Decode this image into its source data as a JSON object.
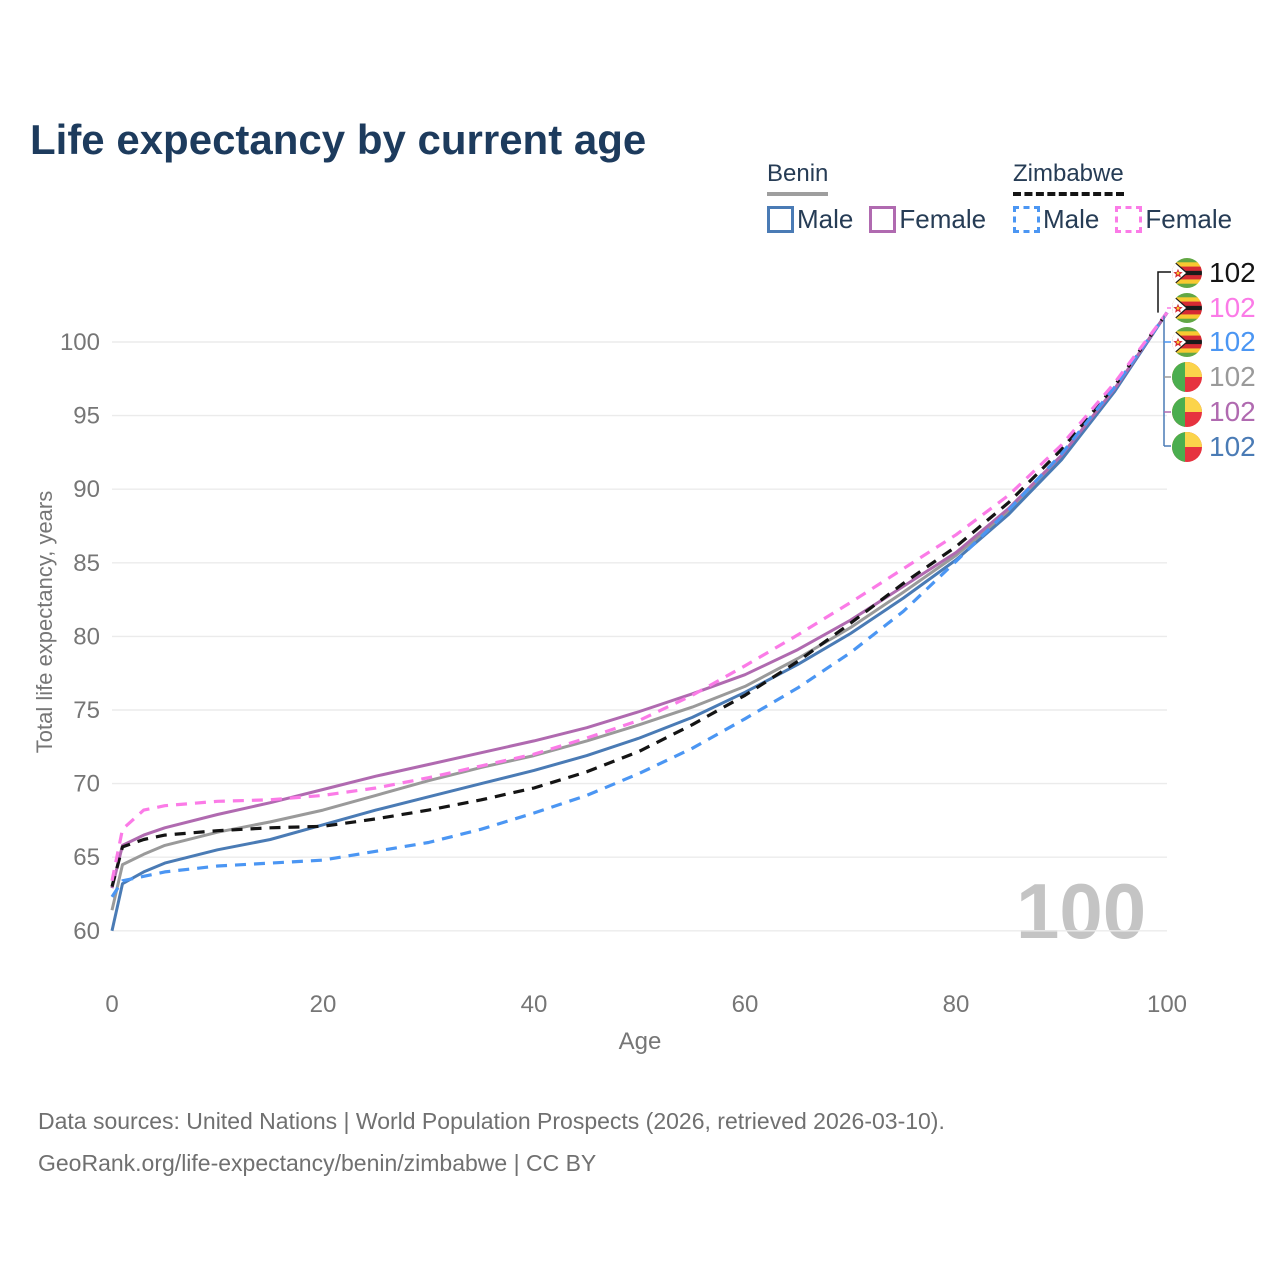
{
  "title": "Life expectancy by current age",
  "legend": {
    "groups": [
      {
        "name": "Benin",
        "underline_color": "#9e9e9e",
        "style": "solid",
        "items": [
          {
            "label": "Male",
            "color": "#4a7bb5"
          },
          {
            "label": "Female",
            "color": "#b06ab0"
          }
        ]
      },
      {
        "name": "Zimbabwe",
        "underline_color": "#141414",
        "style": "dashed",
        "items": [
          {
            "label": "Male",
            "color": "#4b96f3"
          },
          {
            "label": "Female",
            "color": "#fb7be7"
          }
        ]
      }
    ]
  },
  "chart_data": {
    "type": "line",
    "title": "Life expectancy by current age",
    "xlabel": "Age",
    "ylabel": "Total life expectancy, years",
    "xlim": [
      0,
      100
    ],
    "ylim": [
      58,
      106
    ],
    "x_ticks": [
      0,
      20,
      40,
      60,
      80,
      100
    ],
    "y_ticks": [
      60,
      65,
      70,
      75,
      80,
      85,
      90,
      95,
      100
    ],
    "grid": "horizontal",
    "legend_position": "top-right",
    "watermark": "100",
    "x": [
      0,
      1,
      3,
      5,
      10,
      15,
      20,
      25,
      30,
      35,
      40,
      45,
      50,
      55,
      60,
      65,
      70,
      75,
      80,
      85,
      90,
      95,
      100
    ],
    "series": [
      {
        "name": "Benin Total",
        "color": "#9a9a9a",
        "dashed": false,
        "values": [
          61.4,
          64.5,
          65.2,
          65.8,
          66.7,
          67.4,
          68.2,
          69.2,
          70.2,
          71.1,
          71.9,
          72.9,
          74.0,
          75.2,
          76.6,
          78.5,
          80.6,
          83.0,
          85.5,
          88.5,
          92.1,
          96.7,
          102
        ]
      },
      {
        "name": "Benin Male",
        "color": "#4a7bb5",
        "dashed": false,
        "values": [
          60.0,
          63.2,
          64.0,
          64.6,
          65.5,
          66.2,
          67.2,
          68.2,
          69.1,
          70.0,
          70.9,
          71.9,
          73.1,
          74.5,
          76.2,
          78.1,
          80.2,
          82.6,
          85.2,
          88.3,
          92.0,
          96.6,
          102
        ]
      },
      {
        "name": "Benin Female",
        "color": "#b06ab0",
        "dashed": false,
        "values": [
          62.9,
          65.8,
          66.5,
          67.0,
          67.9,
          68.7,
          69.6,
          70.5,
          71.3,
          72.1,
          72.9,
          73.8,
          74.9,
          76.1,
          77.4,
          79.1,
          81.1,
          83.4,
          85.7,
          88.7,
          92.3,
          96.8,
          102
        ]
      },
      {
        "name": "Zimbabwe Total",
        "color": "#141414",
        "dashed": true,
        "values": [
          63.0,
          65.7,
          66.2,
          66.5,
          66.8,
          67.0,
          67.1,
          67.6,
          68.2,
          68.9,
          69.7,
          70.8,
          72.2,
          74.0,
          76.0,
          78.3,
          80.9,
          83.6,
          86.1,
          89.1,
          92.7,
          97.0,
          102
        ]
      },
      {
        "name": "Zimbabwe Male",
        "color": "#4b96f3",
        "dashed": true,
        "values": [
          62.3,
          63.4,
          63.7,
          64.0,
          64.4,
          64.6,
          64.8,
          65.4,
          66.0,
          66.9,
          68.0,
          69.2,
          70.7,
          72.4,
          74.4,
          76.5,
          78.9,
          81.7,
          85.1,
          88.6,
          92.4,
          96.9,
          102
        ]
      },
      {
        "name": "Zimbabwe Female",
        "color": "#fb7be7",
        "dashed": true,
        "values": [
          63.4,
          66.9,
          68.2,
          68.5,
          68.8,
          68.9,
          69.2,
          69.7,
          70.4,
          71.2,
          72.0,
          73.1,
          74.3,
          76.0,
          78.0,
          80.1,
          82.3,
          84.6,
          86.9,
          89.6,
          93.0,
          97.2,
          102
        ]
      }
    ]
  },
  "end_labels": [
    {
      "value": "102",
      "flag": "zimbabwe",
      "color": "#141414"
    },
    {
      "value": "102",
      "flag": "zimbabwe",
      "color": "#fb7be7"
    },
    {
      "value": "102",
      "flag": "zimbabwe",
      "color": "#4b96f3"
    },
    {
      "value": "102",
      "flag": "benin",
      "color": "#9a9a9a"
    },
    {
      "value": "102",
      "flag": "benin",
      "color": "#b06ab0"
    },
    {
      "value": "102",
      "flag": "benin",
      "color": "#4a7bb5"
    }
  ],
  "footer": {
    "line1": "Data sources: United Nations | World Population Prospects (2026, retrieved 2026-03-10).",
    "line2": "GeoRank.org/life-expectancy/benin/zimbabwe | CC BY"
  }
}
